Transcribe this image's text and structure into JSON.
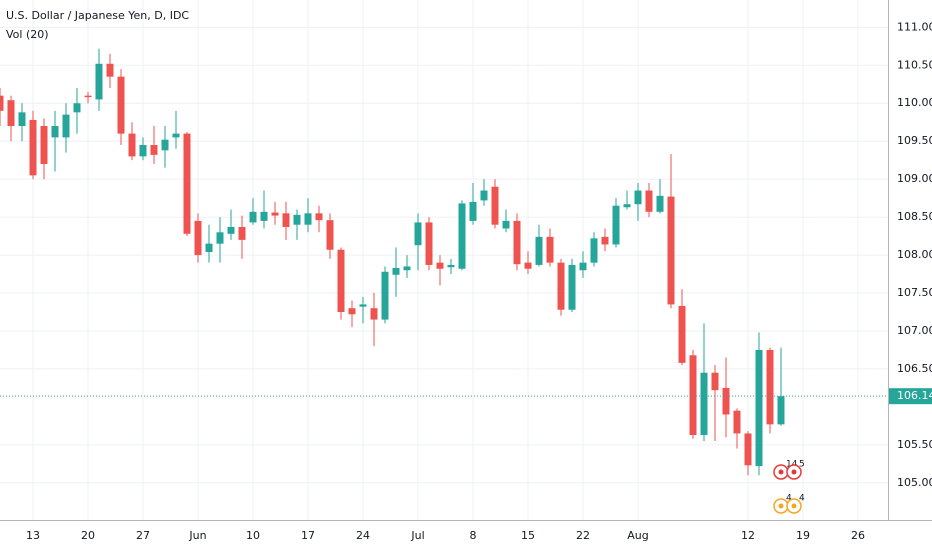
{
  "chart_data": {
    "type": "candlestick",
    "title": "U.S. Dollar / Japanese Yen, D, IDC",
    "subtitle": "Vol (20)",
    "categories": [
      null,
      null,
      null,
      "13",
      null,
      null,
      null,
      null,
      "20",
      null,
      null,
      null,
      null,
      "27",
      null,
      null,
      null,
      null,
      "Jun",
      null,
      null,
      null,
      null,
      "10",
      null,
      null,
      null,
      null,
      "17",
      null,
      null,
      null,
      null,
      "24",
      null,
      null,
      null,
      null,
      "Jul",
      null,
      null,
      null,
      null,
      "8",
      null,
      null,
      null,
      null,
      "15",
      null,
      null,
      null,
      null,
      "22",
      null,
      null,
      null,
      null,
      "Aug",
      null,
      null,
      null,
      null,
      null,
      null,
      null,
      null,
      null,
      "12",
      null,
      null,
      null,
      null,
      "19",
      null,
      null,
      null,
      null,
      "26",
      null
    ],
    "open": [
      110.1,
      110.04,
      109.7,
      109.78,
      109.7,
      109.55,
      109.55,
      109.88,
      110.1,
      110.05,
      110.52,
      110.35,
      109.6,
      109.3,
      109.45,
      109.38,
      109.55,
      109.6,
      108.45,
      108.04,
      108.15,
      108.28,
      108.37,
      108.43,
      108.45,
      108.56,
      108.55,
      108.4,
      108.4,
      108.55,
      108.46,
      108.07,
      107.3,
      107.32,
      107.3,
      107.15,
      107.74,
      107.8,
      108.13,
      108.43,
      107.9,
      107.84,
      107.82,
      108.45,
      108.72,
      108.9,
      108.35,
      108.45,
      107.9,
      107.87,
      108.24,
      107.9,
      107.28,
      107.8,
      107.9,
      108.24,
      108.14,
      108.63,
      108.67,
      108.85,
      108.57,
      108.77,
      107.33,
      106.68,
      105.63,
      106.45,
      106.25,
      105.95,
      105.65,
      105.22,
      106.75,
      105.77,
      null,
      null,
      null,
      null,
      null,
      null,
      null,
      null
    ],
    "high": [
      110.2,
      110.1,
      110.0,
      109.9,
      109.8,
      109.9,
      110.0,
      110.2,
      110.15,
      110.72,
      110.65,
      110.45,
      109.75,
      109.55,
      109.7,
      109.7,
      109.9,
      109.62,
      108.55,
      108.4,
      108.5,
      108.6,
      108.52,
      108.75,
      108.85,
      108.7,
      108.7,
      108.6,
      108.75,
      108.65,
      108.55,
      108.1,
      107.4,
      107.45,
      107.5,
      107.85,
      108.1,
      108.0,
      108.55,
      108.5,
      108.0,
      107.95,
      108.72,
      108.95,
      109.0,
      109.0,
      108.6,
      108.55,
      108.05,
      108.4,
      108.35,
      107.95,
      107.95,
      108.05,
      108.3,
      108.35,
      108.75,
      108.85,
      108.95,
      108.95,
      109.0,
      109.33,
      107.55,
      106.75,
      107.1,
      106.55,
      106.65,
      105.98,
      105.68,
      106.98,
      106.78,
      106.78,
      null,
      null,
      null,
      null,
      null,
      null,
      null,
      null
    ],
    "low": [
      109.7,
      109.5,
      109.5,
      109.0,
      109.0,
      109.1,
      109.35,
      109.6,
      110.0,
      109.9,
      110.2,
      109.45,
      109.25,
      109.25,
      109.2,
      109.15,
      109.4,
      108.25,
      107.9,
      107.9,
      107.9,
      108.2,
      107.95,
      108.4,
      108.35,
      108.4,
      108.2,
      108.2,
      108.3,
      108.3,
      107.95,
      107.15,
      107.05,
      107.1,
      106.8,
      107.1,
      107.45,
      107.7,
      107.8,
      107.8,
      107.6,
      107.75,
      107.8,
      108.4,
      108.65,
      108.35,
      108.3,
      107.8,
      107.75,
      107.85,
      107.85,
      107.2,
      107.25,
      107.7,
      107.85,
      108.05,
      108.1,
      108.6,
      108.45,
      108.5,
      108.55,
      107.3,
      106.55,
      105.58,
      105.55,
      105.55,
      105.6,
      105.45,
      105.1,
      105.1,
      105.65,
      105.75,
      null,
      null,
      null,
      null,
      null,
      null,
      null,
      null
    ],
    "close": [
      109.9,
      109.7,
      109.88,
      109.05,
      109.2,
      109.7,
      109.85,
      110.0,
      110.08,
      110.52,
      110.35,
      109.6,
      109.3,
      109.45,
      109.32,
      109.52,
      109.6,
      108.28,
      108.0,
      108.15,
      108.3,
      108.37,
      108.2,
      108.57,
      108.57,
      108.52,
      108.37,
      108.53,
      108.55,
      108.46,
      108.07,
      107.25,
      107.22,
      107.35,
      107.15,
      107.78,
      107.83,
      107.85,
      108.43,
      107.87,
      107.82,
      107.87,
      108.68,
      108.7,
      108.85,
      108.4,
      108.45,
      107.88,
      107.82,
      108.24,
      107.9,
      107.28,
      107.87,
      107.9,
      108.22,
      108.14,
      108.65,
      108.67,
      108.85,
      108.57,
      108.78,
      107.35,
      106.58,
      105.63,
      106.45,
      106.22,
      105.9,
      105.65,
      105.23,
      106.75,
      105.77,
      106.141,
      null,
      null,
      null,
      null,
      null,
      null,
      null,
      null
    ],
    "up_color": "#26a69a",
    "down_color": "#ef5350",
    "last_price": 106.141,
    "ylim": [
      104.51,
      111.36
    ],
    "yticks": [
      {
        "value": 105,
        "label": "105.000"
      },
      {
        "value": 105.5,
        "label": "105.500"
      },
      {
        "value": 106.5,
        "label": "106.500"
      },
      {
        "value": 107,
        "label": "107.000"
      },
      {
        "value": 107.5,
        "label": "107.500"
      },
      {
        "value": 108,
        "label": "108.000"
      },
      {
        "value": 108.5,
        "label": "108.500"
      },
      {
        "value": 109,
        "label": "109.000"
      },
      {
        "value": 109.5,
        "label": "109.500"
      },
      {
        "value": 110,
        "label": "110.000"
      },
      {
        "value": 110.5,
        "label": "110.500"
      },
      {
        "value": 111,
        "label": "111.000"
      }
    ],
    "grid": true,
    "events": [
      {
        "label": "14"
      },
      {
        "label": "5"
      },
      {
        "label": "4"
      },
      {
        "label": "4"
      }
    ]
  }
}
